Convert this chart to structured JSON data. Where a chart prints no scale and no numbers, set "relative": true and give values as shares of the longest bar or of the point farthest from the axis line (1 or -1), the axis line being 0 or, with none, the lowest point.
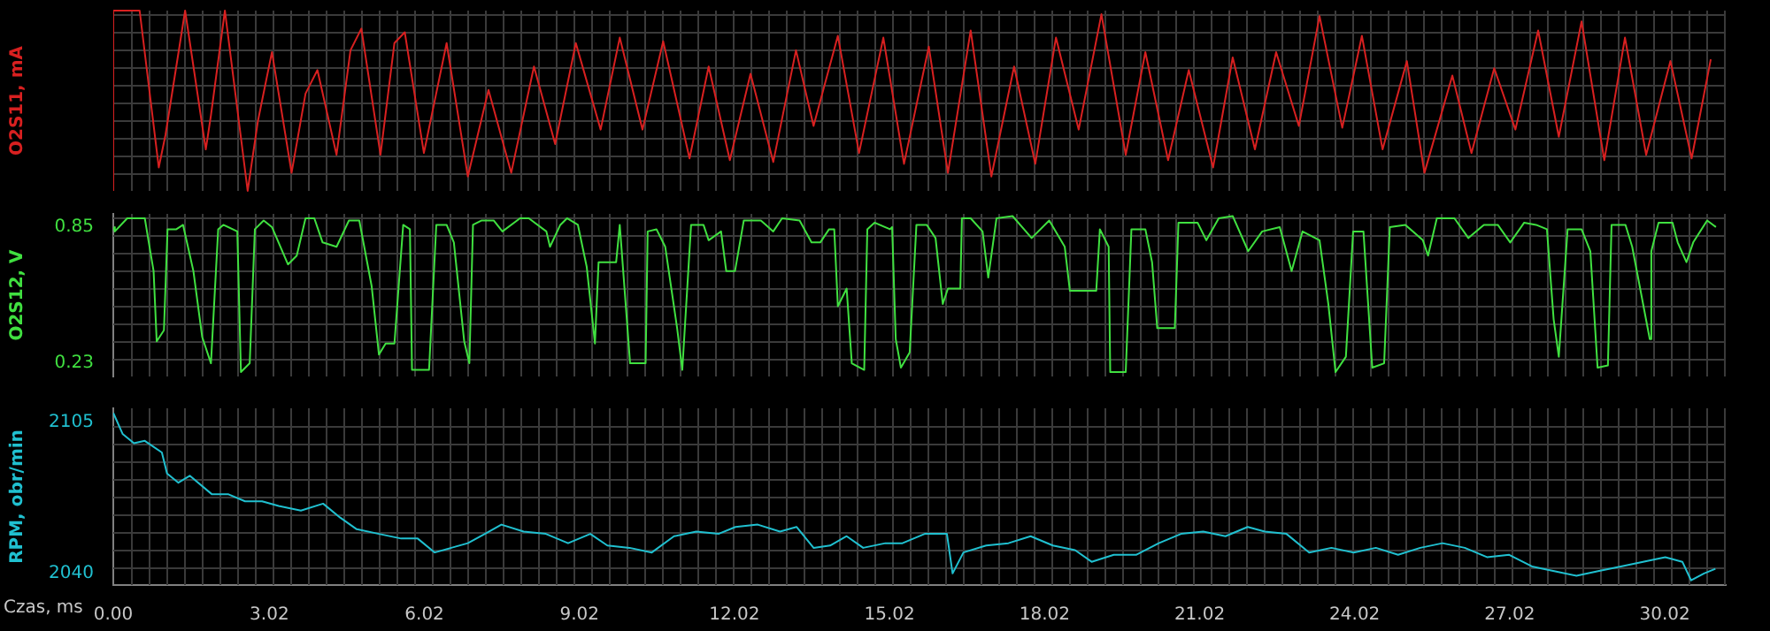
{
  "chart_data": [
    {
      "type": "line",
      "ylabel": "O2S11, mA",
      "relative": true,
      "grid": true,
      "tick_labels": false,
      "xlim": [
        0,
        31.2
      ],
      "x": [
        0,
        0,
        0.51,
        0.88,
        1.01,
        1.39,
        1.79,
        1.89,
        2.16,
        2.6,
        2.8,
        3.07,
        3.45,
        3.72,
        3.95,
        4.32,
        4.59,
        4.8,
        5.17,
        5.44,
        5.64,
        6.01,
        6.45,
        6.86,
        7.26,
        7.7,
        8.14,
        8.55,
        8.95,
        9.43,
        9.8,
        10.24,
        10.64,
        11.15,
        11.52,
        11.93,
        12.33,
        12.77,
        13.21,
        13.55,
        14.02,
        14.43,
        14.9,
        15.3,
        15.78,
        16.15,
        16.59,
        16.99,
        17.43,
        17.84,
        18.24,
        18.68,
        19.12,
        19.59,
        19.97,
        20.41,
        20.81,
        21.28,
        21.66,
        22.09,
        22.5,
        22.94,
        23.34,
        23.78,
        24.16,
        24.56,
        25.03,
        25.37,
        25.91,
        26.28,
        26.72,
        27.13,
        27.57,
        27.97,
        28.41,
        28.85,
        29.25,
        29.66,
        30.13,
        30.54,
        30.91
      ],
      "series": [
        {
          "color": "#d82020",
          "values": [
            0,
            1,
            1,
            0.13,
            0.31,
            1,
            0.23,
            0.42,
            1,
            0,
            0.39,
            0.77,
            0.1,
            0.54,
            0.67,
            0.2,
            0.78,
            0.9,
            0.2,
            0.82,
            0.88,
            0.21,
            0.82,
            0.08,
            0.56,
            0.1,
            0.69,
            0.26,
            0.82,
            0.34,
            0.85,
            0.34,
            0.83,
            0.18,
            0.69,
            0.17,
            0.65,
            0.16,
            0.78,
            0.36,
            0.86,
            0.21,
            0.85,
            0.15,
            0.8,
            0.1,
            0.89,
            0.08,
            0.69,
            0.15,
            0.85,
            0.34,
            0.98,
            0.2,
            0.77,
            0.17,
            0.67,
            0.13,
            0.74,
            0.23,
            0.77,
            0.36,
            0.97,
            0.35,
            0.86,
            0.23,
            0.72,
            0.1,
            0.64,
            0.21,
            0.68,
            0.34,
            0.89,
            0.3,
            0.94,
            0.17,
            0.85,
            0.2,
            0.72,
            0.18,
            0.73
          ]
        }
      ]
    },
    {
      "type": "line",
      "ylabel": "O2S12, V",
      "grid": true,
      "tick_labels": "y",
      "xlim": [
        0,
        31.2
      ],
      "ylim": [
        0.17,
        0.91
      ],
      "yticks": [
        0.23,
        0.85
      ],
      "x": [
        0,
        0.03,
        0.27,
        0.61,
        0.68,
        0.78,
        0.84,
        0.98,
        1.05,
        1.22,
        1.35,
        1.55,
        1.72,
        1.89,
        2.03,
        2.13,
        2.4,
        2.47,
        2.64,
        2.74,
        2.91,
        3.07,
        3.38,
        3.55,
        3.72,
        3.89,
        4.05,
        4.32,
        4.56,
        4.76,
        5,
        5.14,
        5.27,
        5.44,
        5.61,
        5.74,
        5.78,
        6.11,
        6.25,
        6.45,
        6.59,
        6.79,
        6.89,
        6.96,
        7.13,
        7.36,
        7.53,
        7.87,
        8.04,
        8.38,
        8.45,
        8.65,
        8.78,
        8.99,
        9.16,
        9.32,
        9.39,
        9.73,
        9.8,
        10,
        10.3,
        10.34,
        10.51,
        10.68,
        10.91,
        11.01,
        11.18,
        11.42,
        11.52,
        11.76,
        11.86,
        12.03,
        12.2,
        12.53,
        12.77,
        12.94,
        13.28,
        13.51,
        13.68,
        13.85,
        13.95,
        14.02,
        14.19,
        14.29,
        14.53,
        14.59,
        14.73,
        15.03,
        15.07,
        15.14,
        15.24,
        15.41,
        15.54,
        15.74,
        15.91,
        16.05,
        16.15,
        16.39,
        16.42,
        16.59,
        16.82,
        16.93,
        17.09,
        17.4,
        17.77,
        18.11,
        18.41,
        18.51,
        19.02,
        19.09,
        19.26,
        19.29,
        19.59,
        19.7,
        19.97,
        20.1,
        20.2,
        20.54,
        20.61,
        20.98,
        21.15,
        21.39,
        21.66,
        21.96,
        22.23,
        22.57,
        22.8,
        23.01,
        23.34,
        23.51,
        23.65,
        23.85,
        23.99,
        24.19,
        24.36,
        24.59,
        24.7,
        25,
        25.34,
        25.44,
        25.61,
        25.95,
        26.22,
        26.52,
        26.79,
        27.03,
        27.3,
        27.53,
        27.74,
        27.87,
        27.97,
        28.14,
        28.41,
        28.58,
        28.72,
        28.92,
        28.99,
        29.26,
        29.39,
        29.73,
        29.76,
        29.9,
        30.17,
        30.27,
        30.44,
        30.57,
        30.84,
        31.01
      ],
      "series": [
        {
          "color": "#40e040",
          "values": [
            0.85,
            0.83,
            0.89,
            0.89,
            0.79,
            0.65,
            0.33,
            0.38,
            0.84,
            0.84,
            0.86,
            0.65,
            0.35,
            0.23,
            0.84,
            0.86,
            0.83,
            0.19,
            0.23,
            0.84,
            0.88,
            0.85,
            0.68,
            0.72,
            0.89,
            0.89,
            0.78,
            0.76,
            0.88,
            0.88,
            0.58,
            0.27,
            0.32,
            0.32,
            0.86,
            0.84,
            0.2,
            0.2,
            0.86,
            0.86,
            0.78,
            0.33,
            0.23,
            0.86,
            0.88,
            0.88,
            0.83,
            0.89,
            0.89,
            0.83,
            0.76,
            0.86,
            0.89,
            0.86,
            0.67,
            0.32,
            0.69,
            0.69,
            0.86,
            0.23,
            0.23,
            0.83,
            0.84,
            0.76,
            0.39,
            0.2,
            0.86,
            0.86,
            0.79,
            0.83,
            0.65,
            0.65,
            0.88,
            0.88,
            0.83,
            0.89,
            0.88,
            0.78,
            0.78,
            0.84,
            0.84,
            0.49,
            0.57,
            0.23,
            0.2,
            0.84,
            0.87,
            0.84,
            0.85,
            0.34,
            0.21,
            0.28,
            0.86,
            0.86,
            0.8,
            0.5,
            0.57,
            0.57,
            0.89,
            0.89,
            0.83,
            0.62,
            0.89,
            0.9,
            0.8,
            0.88,
            0.76,
            0.56,
            0.56,
            0.84,
            0.76,
            0.19,
            0.19,
            0.84,
            0.84,
            0.69,
            0.39,
            0.39,
            0.87,
            0.87,
            0.79,
            0.89,
            0.9,
            0.74,
            0.83,
            0.85,
            0.65,
            0.83,
            0.79,
            0.5,
            0.19,
            0.26,
            0.83,
            0.83,
            0.21,
            0.23,
            0.85,
            0.86,
            0.79,
            0.72,
            0.89,
            0.89,
            0.8,
            0.86,
            0.86,
            0.78,
            0.87,
            0.86,
            0.84,
            0.43,
            0.26,
            0.84,
            0.84,
            0.74,
            0.21,
            0.22,
            0.86,
            0.86,
            0.76,
            0.34,
            0.74,
            0.87,
            0.87,
            0.78,
            0.69,
            0.78,
            0.88,
            0.85
          ]
        }
      ]
    },
    {
      "type": "line",
      "ylabel": "RPM, obr/min",
      "xlabel": "Czas, ms",
      "grid": true,
      "xlim": [
        0,
        31.2
      ],
      "ylim": [
        2035,
        2111
      ],
      "yticks": [
        2105,
        2040
      ],
      "xticks": [
        {
          "value": 0,
          "label": "0.00"
        },
        {
          "value": 3.02,
          "label": "3.02"
        },
        {
          "value": 6.02,
          "label": "6.02"
        },
        {
          "value": 9.02,
          "label": "9.02"
        },
        {
          "value": 12.02,
          "label": "12.02"
        },
        {
          "value": 15.02,
          "label": "15.02"
        },
        {
          "value": 18.02,
          "label": "18.02"
        },
        {
          "value": 21.02,
          "label": "21.02"
        },
        {
          "value": 24.02,
          "label": "24.02"
        },
        {
          "value": 27.02,
          "label": "27.02"
        },
        {
          "value": 30.02,
          "label": "30.02"
        }
      ],
      "x": [
        0,
        0.18,
        0.4,
        0.61,
        0.94,
        1.04,
        1.26,
        1.48,
        1.91,
        2.23,
        2.55,
        2.88,
        3.2,
        3.63,
        4.06,
        4.39,
        4.71,
        5.14,
        5.57,
        5.89,
        6.22,
        6.54,
        6.86,
        7.19,
        7.51,
        7.94,
        8.37,
        8.8,
        9.23,
        9.56,
        9.99,
        10.42,
        10.85,
        11.28,
        11.71,
        12.04,
        12.47,
        12.9,
        13.22,
        13.55,
        13.87,
        14.19,
        14.51,
        14.94,
        15.27,
        15.7,
        16.13,
        16.24,
        16.45,
        16.89,
        17.32,
        17.75,
        18.18,
        18.61,
        18.93,
        19.36,
        19.79,
        20.23,
        20.66,
        21.09,
        21.52,
        21.95,
        22.28,
        22.7,
        23.14,
        23.57,
        24,
        24.43,
        24.86,
        25.29,
        25.72,
        26.15,
        26.58,
        27.01,
        27.45,
        27.88,
        28.31,
        28.73,
        29.17,
        29.6,
        30.03,
        30.36,
        30.53,
        30.78,
        31
      ],
      "series": [
        {
          "color": "#20c0d0",
          "values": [
            2109,
            2100,
            2096,
            2097,
            2092,
            2083,
            2079,
            2082,
            2074,
            2074,
            2071,
            2071,
            2069,
            2067,
            2070,
            2064,
            2059,
            2057,
            2055,
            2055,
            2049,
            2051,
            2053,
            2057,
            2061,
            2058,
            2057,
            2053,
            2057,
            2052,
            2051,
            2049,
            2056,
            2058,
            2057,
            2060,
            2061,
            2058,
            2060,
            2051,
            2052,
            2056,
            2051,
            2053,
            2053,
            2057,
            2057,
            2040,
            2049,
            2052,
            2053,
            2056,
            2052,
            2050,
            2045,
            2048,
            2048,
            2053,
            2057,
            2058,
            2056,
            2060,
            2058,
            2057,
            2049,
            2051,
            2049,
            2051,
            2048,
            2051,
            2053,
            2051,
            2047,
            2048,
            2043,
            2041,
            2039,
            2041,
            2043,
            2045,
            2047,
            2045,
            2037,
            2040,
            2042
          ]
        }
      ]
    }
  ]
}
